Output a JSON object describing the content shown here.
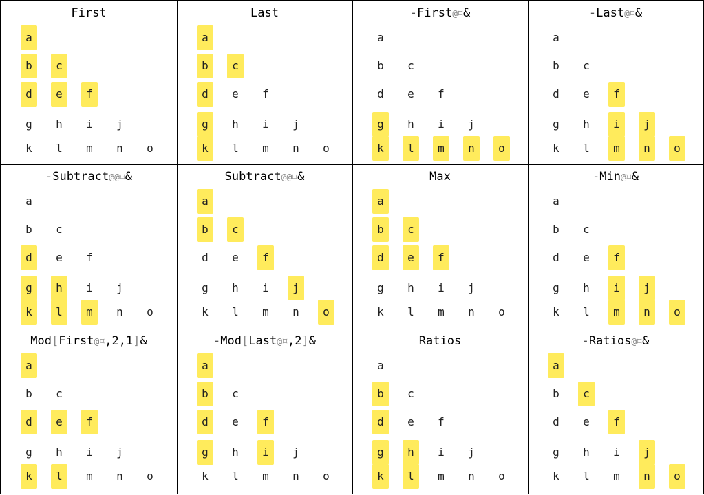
{
  "highlight_color": "#ffeb5c",
  "letters": [
    [
      "a"
    ],
    [
      "b",
      "c"
    ],
    [
      "d",
      "e",
      "f"
    ],
    [
      "g",
      "h",
      "i",
      "j"
    ],
    [
      "k",
      "l",
      "m",
      "n",
      "o"
    ]
  ],
  "panels": [
    {
      "title": "First",
      "highlights": [
        "a",
        "b",
        "c",
        "d",
        "e",
        "f"
      ]
    },
    {
      "title": "Last",
      "highlights": [
        "a",
        "b",
        "c",
        "d",
        "g",
        "k"
      ]
    },
    {
      "title": "-First@⌑&",
      "highlights": [
        "g",
        "k",
        "l",
        "m",
        "n",
        "o"
      ]
    },
    {
      "title": "-Last@⌑&",
      "highlights": [
        "f",
        "i",
        "j",
        "m",
        "n",
        "o"
      ]
    },
    {
      "title": "-Subtract@@⌑&",
      "highlights": [
        "d",
        "g",
        "h",
        "k",
        "l",
        "m"
      ]
    },
    {
      "title": "Subtract@@⌑&",
      "highlights": [
        "a",
        "b",
        "c",
        "f",
        "j",
        "o"
      ]
    },
    {
      "title": "Max",
      "highlights": [
        "a",
        "b",
        "c",
        "d",
        "e",
        "f"
      ]
    },
    {
      "title": "-Min@⌑&",
      "highlights": [
        "f",
        "i",
        "j",
        "m",
        "n",
        "o"
      ]
    },
    {
      "title": "Mod[First@⌑,2,1]&",
      "highlights": [
        "a",
        "d",
        "e",
        "f",
        "k",
        "l"
      ]
    },
    {
      "title": "-Mod[Last@⌑,2]&",
      "highlights": [
        "a",
        "b",
        "d",
        "f",
        "g",
        "i"
      ]
    },
    {
      "title": "Ratios",
      "highlights": [
        "b",
        "d",
        "g",
        "h",
        "k",
        "l"
      ]
    },
    {
      "title": "-Ratios@⌑&",
      "highlights": [
        "a",
        "c",
        "f",
        "j",
        "n",
        "o"
      ]
    }
  ]
}
